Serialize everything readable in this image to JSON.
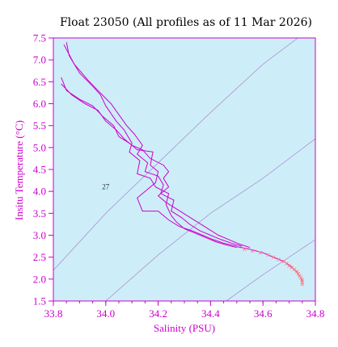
{
  "chart_data": {
    "type": "line",
    "title": "Float 23050  (All profiles as of 11 Mar 2026)",
    "xlabel": "Salinity (PSU)",
    "ylabel": "Insitu Temperature (°C)",
    "xlim": [
      33.8,
      34.8
    ],
    "ylim": [
      1.5,
      7.5
    ],
    "x_ticks": [
      "33.8",
      "34.0",
      "34.2",
      "34.4",
      "34.6",
      "34.8"
    ],
    "y_ticks": [
      "1.5",
      "2.0",
      "2.5",
      "3.0",
      "3.5",
      "4.0",
      "4.5",
      "5.0",
      "5.5",
      "6.0",
      "6.5",
      "7.0",
      "7.5"
    ],
    "grid": false,
    "colors": {
      "axis": "#cc00cc",
      "plot_background": "#cdeef8",
      "profile_line": "#cc00cc",
      "deep_points": "#ff8080",
      "density_contours": "#b090d8"
    },
    "density_contours": [
      {
        "label": "",
        "points": [
          [
            33.8,
            2.2
          ],
          [
            34.0,
            3.5
          ],
          [
            34.2,
            4.65
          ],
          [
            34.4,
            5.8
          ],
          [
            34.6,
            6.9
          ],
          [
            34.8,
            7.8
          ]
        ]
      },
      {
        "label": "27",
        "points": [
          [
            34.0,
            1.5
          ],
          [
            34.2,
            2.55
          ],
          [
            34.4,
            3.5
          ],
          [
            34.6,
            4.3
          ],
          [
            34.8,
            5.2
          ]
        ]
      },
      {
        "label": "",
        "points": [
          [
            34.46,
            1.5
          ],
          [
            34.6,
            2.1
          ],
          [
            34.8,
            2.9
          ]
        ]
      }
    ],
    "contour_label_position": {
      "text": "27",
      "x": 34.0,
      "y": 4.05
    },
    "series": [
      {
        "values": [
          [
            33.85,
            7.4
          ],
          [
            33.86,
            7.1
          ],
          [
            33.9,
            6.7
          ],
          [
            33.95,
            6.4
          ],
          [
            33.98,
            6.2
          ],
          [
            34.0,
            5.95
          ],
          [
            34.04,
            5.6
          ],
          [
            34.07,
            5.4
          ],
          [
            34.1,
            5.1
          ],
          [
            34.09,
            4.9
          ],
          [
            34.13,
            4.7
          ],
          [
            34.12,
            4.4
          ],
          [
            34.17,
            4.3
          ],
          [
            34.19,
            4.1
          ],
          [
            34.24,
            3.95
          ],
          [
            34.23,
            3.7
          ],
          [
            34.25,
            3.45
          ],
          [
            34.27,
            3.3
          ],
          [
            34.3,
            3.15
          ],
          [
            34.34,
            3.05
          ],
          [
            34.38,
            2.95
          ],
          [
            34.42,
            2.85
          ],
          [
            34.46,
            2.78
          ],
          [
            34.5,
            2.72
          ]
        ]
      },
      {
        "values": [
          [
            33.84,
            7.35
          ],
          [
            33.88,
            6.9
          ],
          [
            33.93,
            6.55
          ],
          [
            33.97,
            6.3
          ],
          [
            34.02,
            6.0
          ],
          [
            34.05,
            5.75
          ],
          [
            34.08,
            5.5
          ],
          [
            34.11,
            5.3
          ],
          [
            34.14,
            5.05
          ],
          [
            34.12,
            4.85
          ],
          [
            34.16,
            4.65
          ],
          [
            34.15,
            4.45
          ],
          [
            34.2,
            4.35
          ],
          [
            34.22,
            4.15
          ],
          [
            34.21,
            3.95
          ],
          [
            34.26,
            3.8
          ],
          [
            34.25,
            3.55
          ],
          [
            34.29,
            3.4
          ],
          [
            34.32,
            3.25
          ],
          [
            34.36,
            3.1
          ],
          [
            34.4,
            3.0
          ],
          [
            34.44,
            2.9
          ],
          [
            34.48,
            2.82
          ],
          [
            34.52,
            2.75
          ]
        ]
      },
      {
        "values": [
          [
            33.83,
            6.6
          ],
          [
            33.85,
            6.3
          ],
          [
            33.9,
            6.1
          ],
          [
            33.95,
            5.95
          ],
          [
            33.99,
            5.7
          ],
          [
            34.03,
            5.5
          ],
          [
            34.05,
            5.25
          ],
          [
            34.09,
            5.1
          ],
          [
            34.12,
            4.95
          ],
          [
            34.18,
            4.9
          ],
          [
            34.17,
            4.6
          ],
          [
            34.2,
            4.45
          ],
          [
            34.19,
            4.2
          ],
          [
            34.15,
            4.0
          ],
          [
            34.12,
            3.85
          ],
          [
            34.14,
            3.55
          ],
          [
            34.2,
            3.55
          ],
          [
            34.24,
            3.35
          ],
          [
            34.28,
            3.2
          ],
          [
            34.33,
            3.1
          ],
          [
            34.37,
            3.0
          ],
          [
            34.41,
            2.9
          ],
          [
            34.45,
            2.82
          ],
          [
            34.5,
            2.75
          ]
        ]
      },
      {
        "values": [
          [
            33.83,
            6.45
          ],
          [
            33.87,
            6.2
          ],
          [
            33.92,
            6.0
          ],
          [
            33.97,
            5.85
          ],
          [
            34.0,
            5.6
          ],
          [
            34.04,
            5.4
          ],
          [
            34.07,
            5.2
          ],
          [
            34.1,
            5.05
          ],
          [
            34.14,
            4.95
          ],
          [
            34.17,
            4.75
          ],
          [
            34.22,
            4.6
          ],
          [
            34.24,
            4.45
          ],
          [
            34.22,
            4.3
          ],
          [
            34.24,
            4.1
          ],
          [
            34.2,
            3.9
          ],
          [
            34.23,
            3.75
          ],
          [
            34.27,
            3.6
          ],
          [
            34.31,
            3.45
          ],
          [
            34.35,
            3.3
          ],
          [
            34.39,
            3.15
          ],
          [
            34.43,
            3.0
          ],
          [
            34.47,
            2.9
          ],
          [
            34.51,
            2.8
          ],
          [
            34.55,
            2.72
          ]
        ]
      },
      {
        "values": [
          [
            34.5,
            2.74
          ],
          [
            34.55,
            2.68
          ],
          [
            34.6,
            2.6
          ],
          [
            34.64,
            2.5
          ],
          [
            34.68,
            2.4
          ],
          [
            34.71,
            2.28
          ],
          [
            34.73,
            2.15
          ],
          [
            34.745,
            2.02
          ],
          [
            34.75,
            1.92
          ]
        ]
      }
    ],
    "deep_points": [
      [
        34.53,
        2.68
      ],
      [
        34.56,
        2.64
      ],
      [
        34.59,
        2.6
      ],
      [
        34.62,
        2.55
      ],
      [
        34.64,
        2.5
      ],
      [
        34.66,
        2.45
      ],
      [
        34.68,
        2.4
      ],
      [
        34.69,
        2.35
      ],
      [
        34.7,
        2.3
      ],
      [
        34.71,
        2.26
      ],
      [
        34.72,
        2.22
      ],
      [
        34.73,
        2.17
      ],
      [
        34.735,
        2.12
      ],
      [
        34.74,
        2.07
      ],
      [
        34.745,
        2.03
      ],
      [
        34.75,
        1.98
      ],
      [
        34.75,
        1.93
      ],
      [
        34.75,
        1.88
      ]
    ]
  }
}
